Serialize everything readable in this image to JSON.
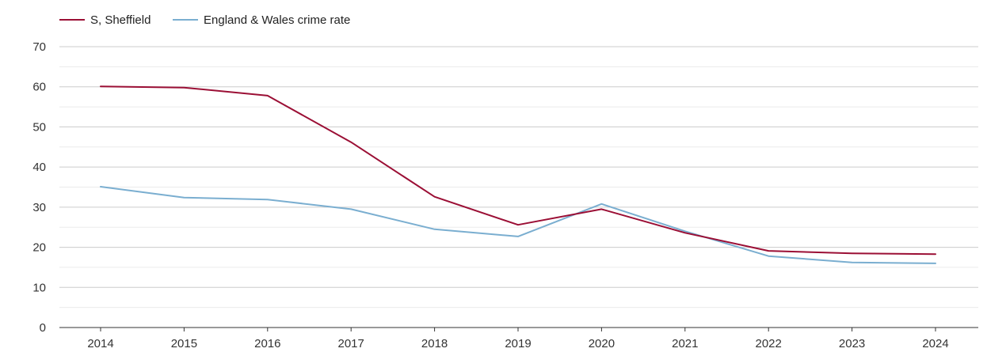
{
  "chart_data": {
    "type": "line",
    "title": "",
    "xlabel": "",
    "ylabel": "",
    "ylim": [
      0,
      70
    ],
    "yticks": [
      0,
      10,
      20,
      30,
      40,
      50,
      60,
      70
    ],
    "categories": [
      "2014",
      "2015",
      "2016",
      "2017",
      "2018",
      "2019",
      "2020",
      "2021",
      "2022",
      "2023",
      "2024"
    ],
    "legend_position": "top-left",
    "grid": true,
    "series": [
      {
        "name": "S, Sheffield",
        "color": "#9b0f35",
        "values": [
          60.1,
          59.8,
          57.8,
          46.2,
          32.6,
          25.6,
          29.5,
          23.6,
          19.1,
          18.5,
          18.3
        ]
      },
      {
        "name": "England & Wales crime rate",
        "color": "#7aaed0",
        "values": [
          35.1,
          32.4,
          31.9,
          29.5,
          24.5,
          22.7,
          30.8,
          24.0,
          17.8,
          16.2,
          16.0
        ]
      }
    ]
  }
}
